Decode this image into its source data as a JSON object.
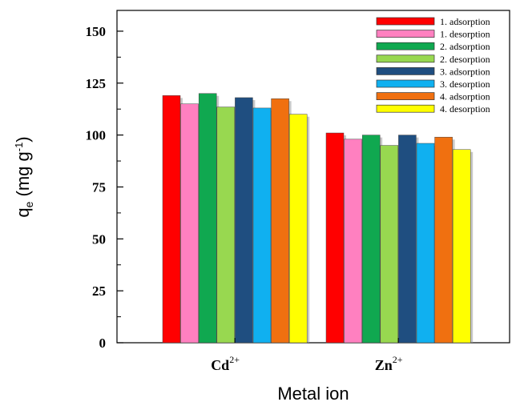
{
  "chart_data": {
    "type": "bar",
    "categories": [
      {
        "base": "Cd",
        "sup": "2+"
      },
      {
        "base": "Zn",
        "sup": "2+"
      }
    ],
    "series": [
      {
        "name": "1. adsorption",
        "color": "#ff0000",
        "values": [
          119,
          101
        ]
      },
      {
        "name": "1. desorption",
        "color": "#ff80c0",
        "values": [
          115,
          98
        ]
      },
      {
        "name": "2. adsorption",
        "color": "#10a850",
        "values": [
          120,
          100
        ]
      },
      {
        "name": "2. desorption",
        "color": "#98d850",
        "values": [
          113.5,
          95
        ]
      },
      {
        "name": "3. adsorption",
        "color": "#1f4e80",
        "values": [
          118,
          100
        ]
      },
      {
        "name": "3. desorption",
        "color": "#10b0f0",
        "values": [
          113,
          96
        ]
      },
      {
        "name": "4. adsorption",
        "color": "#f07010",
        "values": [
          117.5,
          99
        ]
      },
      {
        "name": "4. desorption",
        "color": "#ffff00",
        "values": [
          110,
          93
        ]
      }
    ],
    "xlabel": "Metal ion",
    "ylabel": {
      "main": "q",
      "sub": "e",
      "unit_open": " (mg g",
      "unit_sup": "-1",
      "unit_close": ")"
    },
    "ylim": [
      0,
      160
    ],
    "yticks": [
      0,
      25,
      50,
      75,
      100,
      125,
      150
    ],
    "ytick_labels": [
      "0",
      "25",
      "50",
      "75",
      "100",
      "125",
      "150"
    ],
    "legend_position": "top-right",
    "grid": false
  }
}
